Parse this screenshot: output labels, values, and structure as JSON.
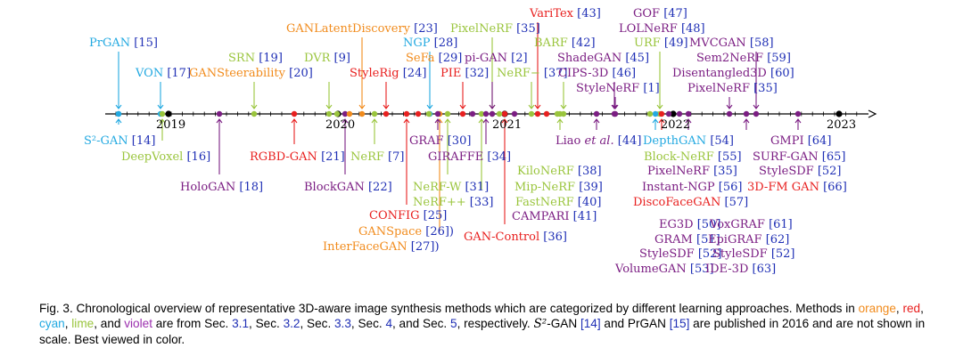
{
  "colors": {
    "orange": "#f18b1c",
    "red": "#e8201f",
    "cyan": "#23a9e1",
    "lime": "#9ac53d",
    "violet": "#7b1e83",
    "link": "#1f2fb5",
    "axis": "#000000"
  },
  "timeline": {
    "years": [
      "2019",
      "2020",
      "2021",
      "2022",
      "2023"
    ],
    "above": [
      {
        "text": "PrGAN",
        "ref": "[15]",
        "color": "cyan"
      },
      {
        "text": "VON",
        "ref": "[17]",
        "color": "cyan"
      },
      {
        "text": "SRN",
        "ref": "[19]",
        "color": "lime"
      },
      {
        "text": "GANSteerability",
        "ref": "[20]",
        "color": "orange"
      },
      {
        "text": "DVR",
        "ref": "[9]",
        "color": "lime"
      },
      {
        "text": "GANLatentDiscovery",
        "ref": "[23]",
        "color": "orange"
      },
      {
        "text": "StyleRig",
        "ref": "[24]",
        "color": "red"
      },
      {
        "text": "NGP",
        "ref": "[28]",
        "color": "cyan"
      },
      {
        "text": "SeFa",
        "ref": "[29]",
        "color": "orange"
      },
      {
        "text": "PixelNeRF",
        "ref": "[35]",
        "color": "lime"
      },
      {
        "text": "pi-GAN",
        "ref": "[2]",
        "color": "violet"
      },
      {
        "text": "PIE",
        "ref": "[32]",
        "color": "red"
      },
      {
        "text": "VariTex",
        "ref": "[43]",
        "color": "red"
      },
      {
        "text": "NeRF−",
        "ref": "[37]",
        "color": "lime"
      },
      {
        "text": "BARF",
        "ref": "[42]",
        "color": "lime"
      },
      {
        "text": "GOF",
        "ref": "[47]",
        "color": "violet"
      },
      {
        "text": "LOLNeRF",
        "ref": "[48]",
        "color": "violet"
      },
      {
        "text": "URF",
        "ref": "[49]",
        "color": "lime"
      },
      {
        "text": "ShadeGAN",
        "ref": "[45]",
        "color": "violet"
      },
      {
        "text": "CIPS-3D",
        "ref": "[46]",
        "color": "violet"
      },
      {
        "text": "StyleNeRF",
        "ref": "[1]",
        "color": "violet"
      },
      {
        "text": "MVCGAN",
        "ref": "[58]",
        "color": "violet"
      },
      {
        "text": "Sem2NeRF",
        "ref": "[59]",
        "color": "violet"
      },
      {
        "text": "Disentangled3D",
        "ref": "[60]",
        "color": "violet"
      },
      {
        "text": "PixelNeRF",
        "ref": "[35]",
        "color": "violet"
      }
    ],
    "below": [
      {
        "text": "S²-GAN",
        "ref": "[14]",
        "color": "cyan"
      },
      {
        "text": "DeepVoxel",
        "ref": "[16]",
        "color": "lime"
      },
      {
        "text": "HoloGAN",
        "ref": "[18]",
        "color": "violet"
      },
      {
        "text": "RGBD-GAN",
        "ref": "[21]",
        "color": "red"
      },
      {
        "text": "BlockGAN",
        "ref": "[22]",
        "color": "violet"
      },
      {
        "text": "NeRF",
        "ref": "[7]",
        "color": "lime"
      },
      {
        "text": "CONFIG",
        "ref": "[25]",
        "color": "red"
      },
      {
        "text": "GANSpace",
        "ref": "[26])",
        "color": "orange"
      },
      {
        "text": "InterFaceGAN",
        "ref": "[27])",
        "color": "orange"
      },
      {
        "text": "GRAF",
        "ref": "[30]",
        "color": "violet"
      },
      {
        "text": "NeRF-W",
        "ref": "[31]",
        "color": "lime"
      },
      {
        "text": "NeRF++",
        "ref": "[33]",
        "color": "lime"
      },
      {
        "text": "GIRAFFE",
        "ref": "[34]",
        "color": "violet"
      },
      {
        "text": "GAN-Control",
        "ref": "[36]",
        "color": "red"
      },
      {
        "text": "KiloNeRF",
        "ref": "[38]",
        "color": "lime"
      },
      {
        "text": "Mip-NeRF",
        "ref": "[39]",
        "color": "lime"
      },
      {
        "text": "FastNeRF",
        "ref": "[40]",
        "color": "lime"
      },
      {
        "text": "CAMPARI",
        "ref": "[41]",
        "color": "violet"
      },
      {
        "text": "Liao",
        "em": "et al.",
        "ref": "[44]",
        "color": "violet"
      },
      {
        "text": "DepthGAN",
        "ref": "[54]",
        "color": "cyan"
      },
      {
        "text": "Block-NeRF",
        "ref": "[55]",
        "color": "lime"
      },
      {
        "text": "PixelNeRF",
        "ref": "[35]",
        "color": "violet"
      },
      {
        "text": "Instant-NGP",
        "ref": "[56]",
        "color": "violet"
      },
      {
        "text": "DiscoFaceGAN",
        "ref": "[57]",
        "color": "red"
      },
      {
        "text": "EG3D",
        "ref": "[50]",
        "color": "violet"
      },
      {
        "text": "GRAM",
        "ref": "[51]",
        "color": "violet"
      },
      {
        "text": "StyleSDF",
        "ref": "[52]",
        "color": "violet"
      },
      {
        "text": "VolumeGAN",
        "ref": "[53]",
        "color": "violet"
      },
      {
        "text": "VoxGRAF",
        "ref": "[61]",
        "color": "violet"
      },
      {
        "text": "EpiGRAF",
        "ref": "[62]",
        "color": "violet"
      },
      {
        "text": "StyleSDF",
        "ref": "[52]",
        "color": "violet"
      },
      {
        "text": "IDE-3D",
        "ref": "[63]",
        "color": "violet"
      },
      {
        "text": "GMPI",
        "ref": "[64]",
        "color": "violet"
      },
      {
        "text": "SURF-GAN",
        "ref": "[65]",
        "color": "violet"
      },
      {
        "text": "StyleSDF",
        "ref": "[52]",
        "color": "violet"
      },
      {
        "text": "3D-FM GAN",
        "ref": "[66]",
        "color": "red"
      }
    ]
  },
  "caption": {
    "label": "Fig. 3.",
    "text1": " Chronological overview of representative 3D-aware image synthesis methods which are categorized by different learning approaches. Methods in ",
    "orange": "orange",
    "sep1": ", ",
    "red": "red",
    "sep2": ", ",
    "cyan": "cyan",
    "sep3": ", ",
    "lime": "lime",
    "sep4": ", and ",
    "violet": "violet",
    "text2": " are from Sec. ",
    "sec1": "3.1",
    "text3": ", Sec. ",
    "sec2": "3.2",
    "text4": ", Sec. ",
    "sec3": "3.3",
    "text5": ",  Sec. ",
    "sec4": "4",
    "text6": ", and Sec. ",
    "sec5": "5",
    "text7": ", respectively. ",
    "s2gan": "S²",
    "text8": "-GAN ",
    "ref14": "[14]",
    "text9": " and PrGAN ",
    "ref15": "[15]",
    "text10": " are published in 2016 and are not shown in scale. Best viewed in color."
  }
}
